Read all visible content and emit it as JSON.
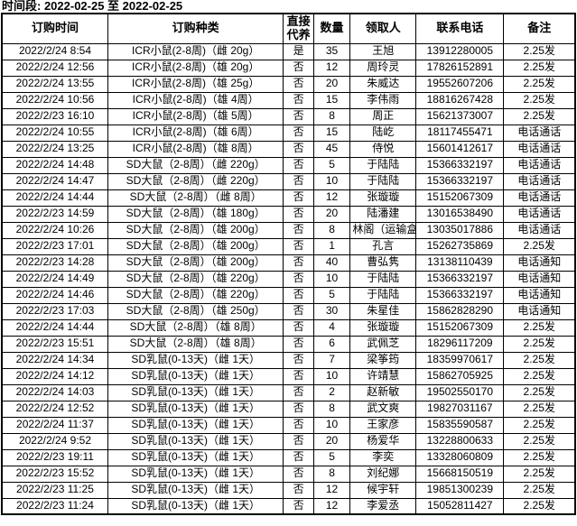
{
  "page": {
    "period_label": "时间段: 2022-02-25 至 2022-02-25"
  },
  "colors": {
    "background": "#ffffff",
    "text": "#000000",
    "border": "#000000"
  },
  "table": {
    "headers": [
      "订购时间",
      "订购种类",
      "直接代养",
      "数量",
      "领取人",
      "联系电话",
      "备注"
    ],
    "rows": [
      [
        "2022/2/24 8:54",
        "ICR小鼠(2-8周)（雌 20g）",
        "是",
        "35",
        "王旭",
        "13912280005",
        "2.25发"
      ],
      [
        "2022/2/24 12:56",
        "ICR小鼠(2-8周)（雄 20g）",
        "否",
        "12",
        "周玲灵",
        "17826152891",
        "2.25发"
      ],
      [
        "2022/2/24 13:55",
        "ICR小鼠(2-8周)（雄 25g）",
        "否",
        "20",
        "朱威达",
        "19552607206",
        "2.25发"
      ],
      [
        "2022/2/24 10:56",
        "ICR小鼠(2-8周)（雄 4周）",
        "否",
        "15",
        "李伟雨",
        "18816267428",
        "2.25发"
      ],
      [
        "2022/2/23 16:10",
        "ICR小鼠(2-8周)（雄 5周）",
        "否",
        "8",
        "周正",
        "15621373007",
        "2.25发"
      ],
      [
        "2022/2/24 10:55",
        "ICR小鼠(2-8周)（雄 6周）",
        "否",
        "15",
        "陆屹",
        "18117455471",
        "电话通话"
      ],
      [
        "2022/2/24 13:25",
        "ICR小鼠(2-8周)（雄 8周）",
        "否",
        "45",
        "侍悦",
        "15601412617",
        "电话通话"
      ],
      [
        "2022/2/24 14:48",
        "SD大鼠（2-8周）（雌 220g）",
        "否",
        "5",
        "于陆陆",
        "15366332197",
        "电话通话"
      ],
      [
        "2022/2/24 14:47",
        "SD大鼠（2-8周）（雌 220g）",
        "否",
        "10",
        "于陆陆",
        "15366332197",
        "电话通话"
      ],
      [
        "2022/2/24 14:44",
        "SD大鼠（2-8周）（雌 8周）",
        "否",
        "12",
        "张璇璇",
        "15152067309",
        "电话通话"
      ],
      [
        "2022/2/23 14:59",
        "SD大鼠（2-8周）（雄 180g）",
        "否",
        "20",
        "陆潘建",
        "13016538490",
        "电话通话"
      ],
      [
        "2022/2/24 10:26",
        "SD大鼠（2-8周）（雄 200g）",
        "否",
        "8",
        "林阁（运输盒）",
        "13035017886",
        "电话通话"
      ],
      [
        "2022/2/23 17:01",
        "SD大鼠（2-8周）（雄 200g）",
        "否",
        "1",
        "孔言",
        "15262735869",
        "2.25发"
      ],
      [
        "2022/2/23 14:28",
        "SD大鼠（2-8周）（雄 200g）",
        "否",
        "40",
        "曹弘隽",
        "13138110439",
        "电话通知"
      ],
      [
        "2022/2/24 14:49",
        "SD大鼠（2-8周）（雄 220g）",
        "否",
        "10",
        "于陆陆",
        "15366332197",
        "电话通知"
      ],
      [
        "2022/2/24 14:46",
        "SD大鼠（2-8周）（雄 220g）",
        "否",
        "5",
        "于陆陆",
        "15366332197",
        "电话通知"
      ],
      [
        "2022/2/23 17:03",
        "SD大鼠（2-8周）（雄 250g）",
        "否",
        "30",
        "朱星佳",
        "15862828290",
        "电话通知"
      ],
      [
        "2022/2/24 14:44",
        "SD大鼠（2-8周）（雄 8周）",
        "否",
        "4",
        "张璇璇",
        "15152067309",
        "2.25发"
      ],
      [
        "2022/2/23 15:51",
        "SD大鼠（2-8周）（雄 8周）",
        "否",
        "6",
        "武佩芝",
        "18296117209",
        "2.25发"
      ],
      [
        "2022/2/24 14:34",
        "SD乳鼠(0-13天)（雌 1天）",
        "否",
        "7",
        "梁筝筠",
        "18359970617",
        "2.25发"
      ],
      [
        "2022/2/24 14:12",
        "SD乳鼠(0-13天)（雌 1天）",
        "否",
        "10",
        "许靖慧",
        "15862705925",
        "2.25发"
      ],
      [
        "2022/2/24 14:03",
        "SD乳鼠(0-13天)（雌 1天）",
        "否",
        "2",
        "赵新敏",
        "19502550170",
        "2.25发"
      ],
      [
        "2022/2/24 12:52",
        "SD乳鼠(0-13天)（雌 1天）",
        "否",
        "8",
        "武文爽",
        "19827031167",
        "2.25发"
      ],
      [
        "2022/2/24 11:37",
        "SD乳鼠(0-13天)（雌 1天）",
        "否",
        "10",
        "王家彦",
        "15835590587",
        "2.25发"
      ],
      [
        "2022/2/24 9:52",
        "SD乳鼠(0-13天)（雌 1天）",
        "否",
        "20",
        "杨爱华",
        "13228800633",
        "2.25发"
      ],
      [
        "2022/2/23 19:11",
        "SD乳鼠(0-13天)（雌 1天）",
        "否",
        "5",
        "李奕",
        "13328060809",
        "2.25发"
      ],
      [
        "2022/2/23 15:52",
        "SD乳鼠(0-13天)（雌 1天）",
        "否",
        "8",
        "刘纪娜",
        "15668150519",
        "2.25发"
      ],
      [
        "2022/2/23 11:25",
        "SD乳鼠(0-13天)（雌 1天）",
        "否",
        "12",
        "候宇轩",
        "19851300239",
        "2.25发"
      ],
      [
        "2022/2/23 11:24",
        "SD乳鼠(0-13天)（雌 1天）",
        "否",
        "12",
        "李爱丞",
        "15052811427",
        "2.25发"
      ]
    ]
  }
}
